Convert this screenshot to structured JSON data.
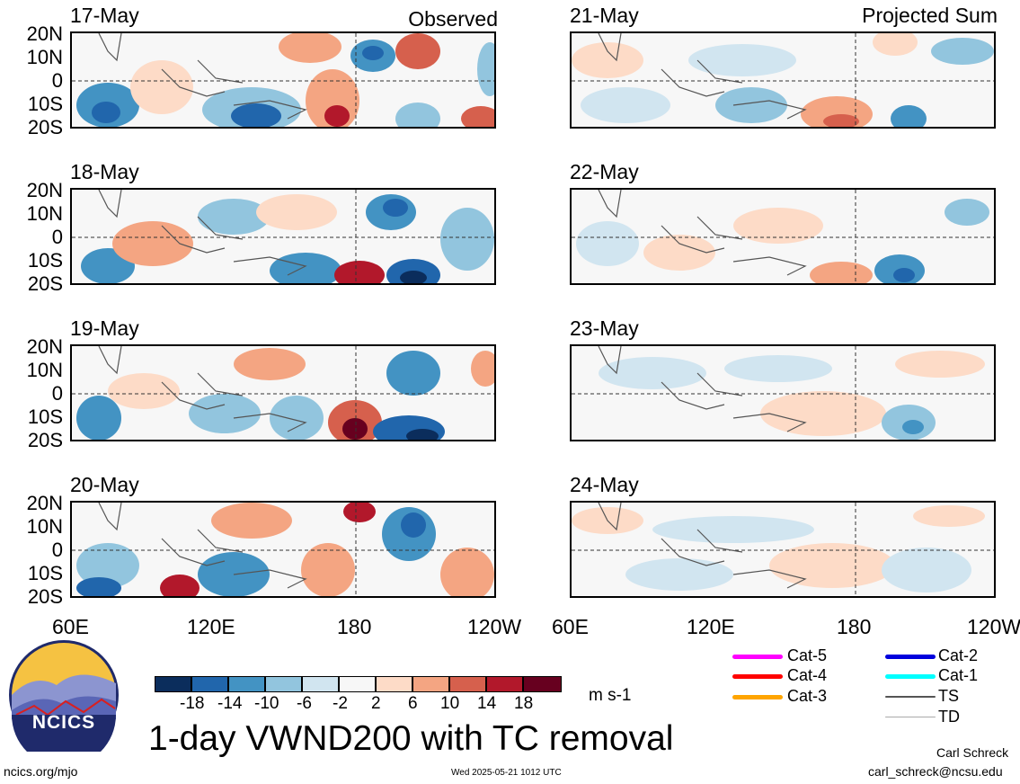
{
  "panels_observed": [
    {
      "date": "17-May",
      "label": "Observed"
    },
    {
      "date": "18-May",
      "label": ""
    },
    {
      "date": "19-May",
      "label": ""
    },
    {
      "date": "20-May",
      "label": ""
    }
  ],
  "panels_projected": [
    {
      "date": "21-May",
      "label": "Projected Sum"
    },
    {
      "date": "22-May",
      "label": ""
    },
    {
      "date": "23-May",
      "label": ""
    },
    {
      "date": "24-May",
      "label": ""
    }
  ],
  "lat_labels": [
    "20N",
    "10N",
    "0",
    "10S",
    "20S"
  ],
  "lon_labels": [
    "60E",
    "120E",
    "180",
    "120W"
  ],
  "colorbar": {
    "ticks": [
      "-18",
      "-14",
      "-10",
      "-6",
      "-2",
      "2",
      "6",
      "10",
      "14",
      "18"
    ],
    "colors": [
      "#0b2d5c",
      "#2166ac",
      "#4393c3",
      "#92c5de",
      "#d1e5f0",
      "#f7f7f7",
      "#fddbc7",
      "#f4a582",
      "#d6604d",
      "#b2182b",
      "#67001f"
    ],
    "units": "m s-1"
  },
  "tc_legend": [
    {
      "label": "Cat-5",
      "color": "#ff00ff"
    },
    {
      "label": "Cat-4",
      "color": "#ff0000"
    },
    {
      "label": "Cat-3",
      "color": "#ffa500"
    },
    {
      "label": "Cat-2",
      "color": "#0000dd"
    },
    {
      "label": "Cat-1",
      "color": "#00ffff"
    },
    {
      "label": "TS",
      "color": "#555555"
    },
    {
      "label": "TD",
      "color": "#aaaaaa"
    }
  ],
  "logo": {
    "text": "NCICS"
  },
  "main_title": "1-day VWND200 with TC removal",
  "footer": {
    "url": "ncics.org/mjo",
    "timestamp": "Wed 2025-05-21 1012 UTC",
    "author": "Carl Schreck",
    "email": "carl_schreck@ncsu.edu"
  }
}
